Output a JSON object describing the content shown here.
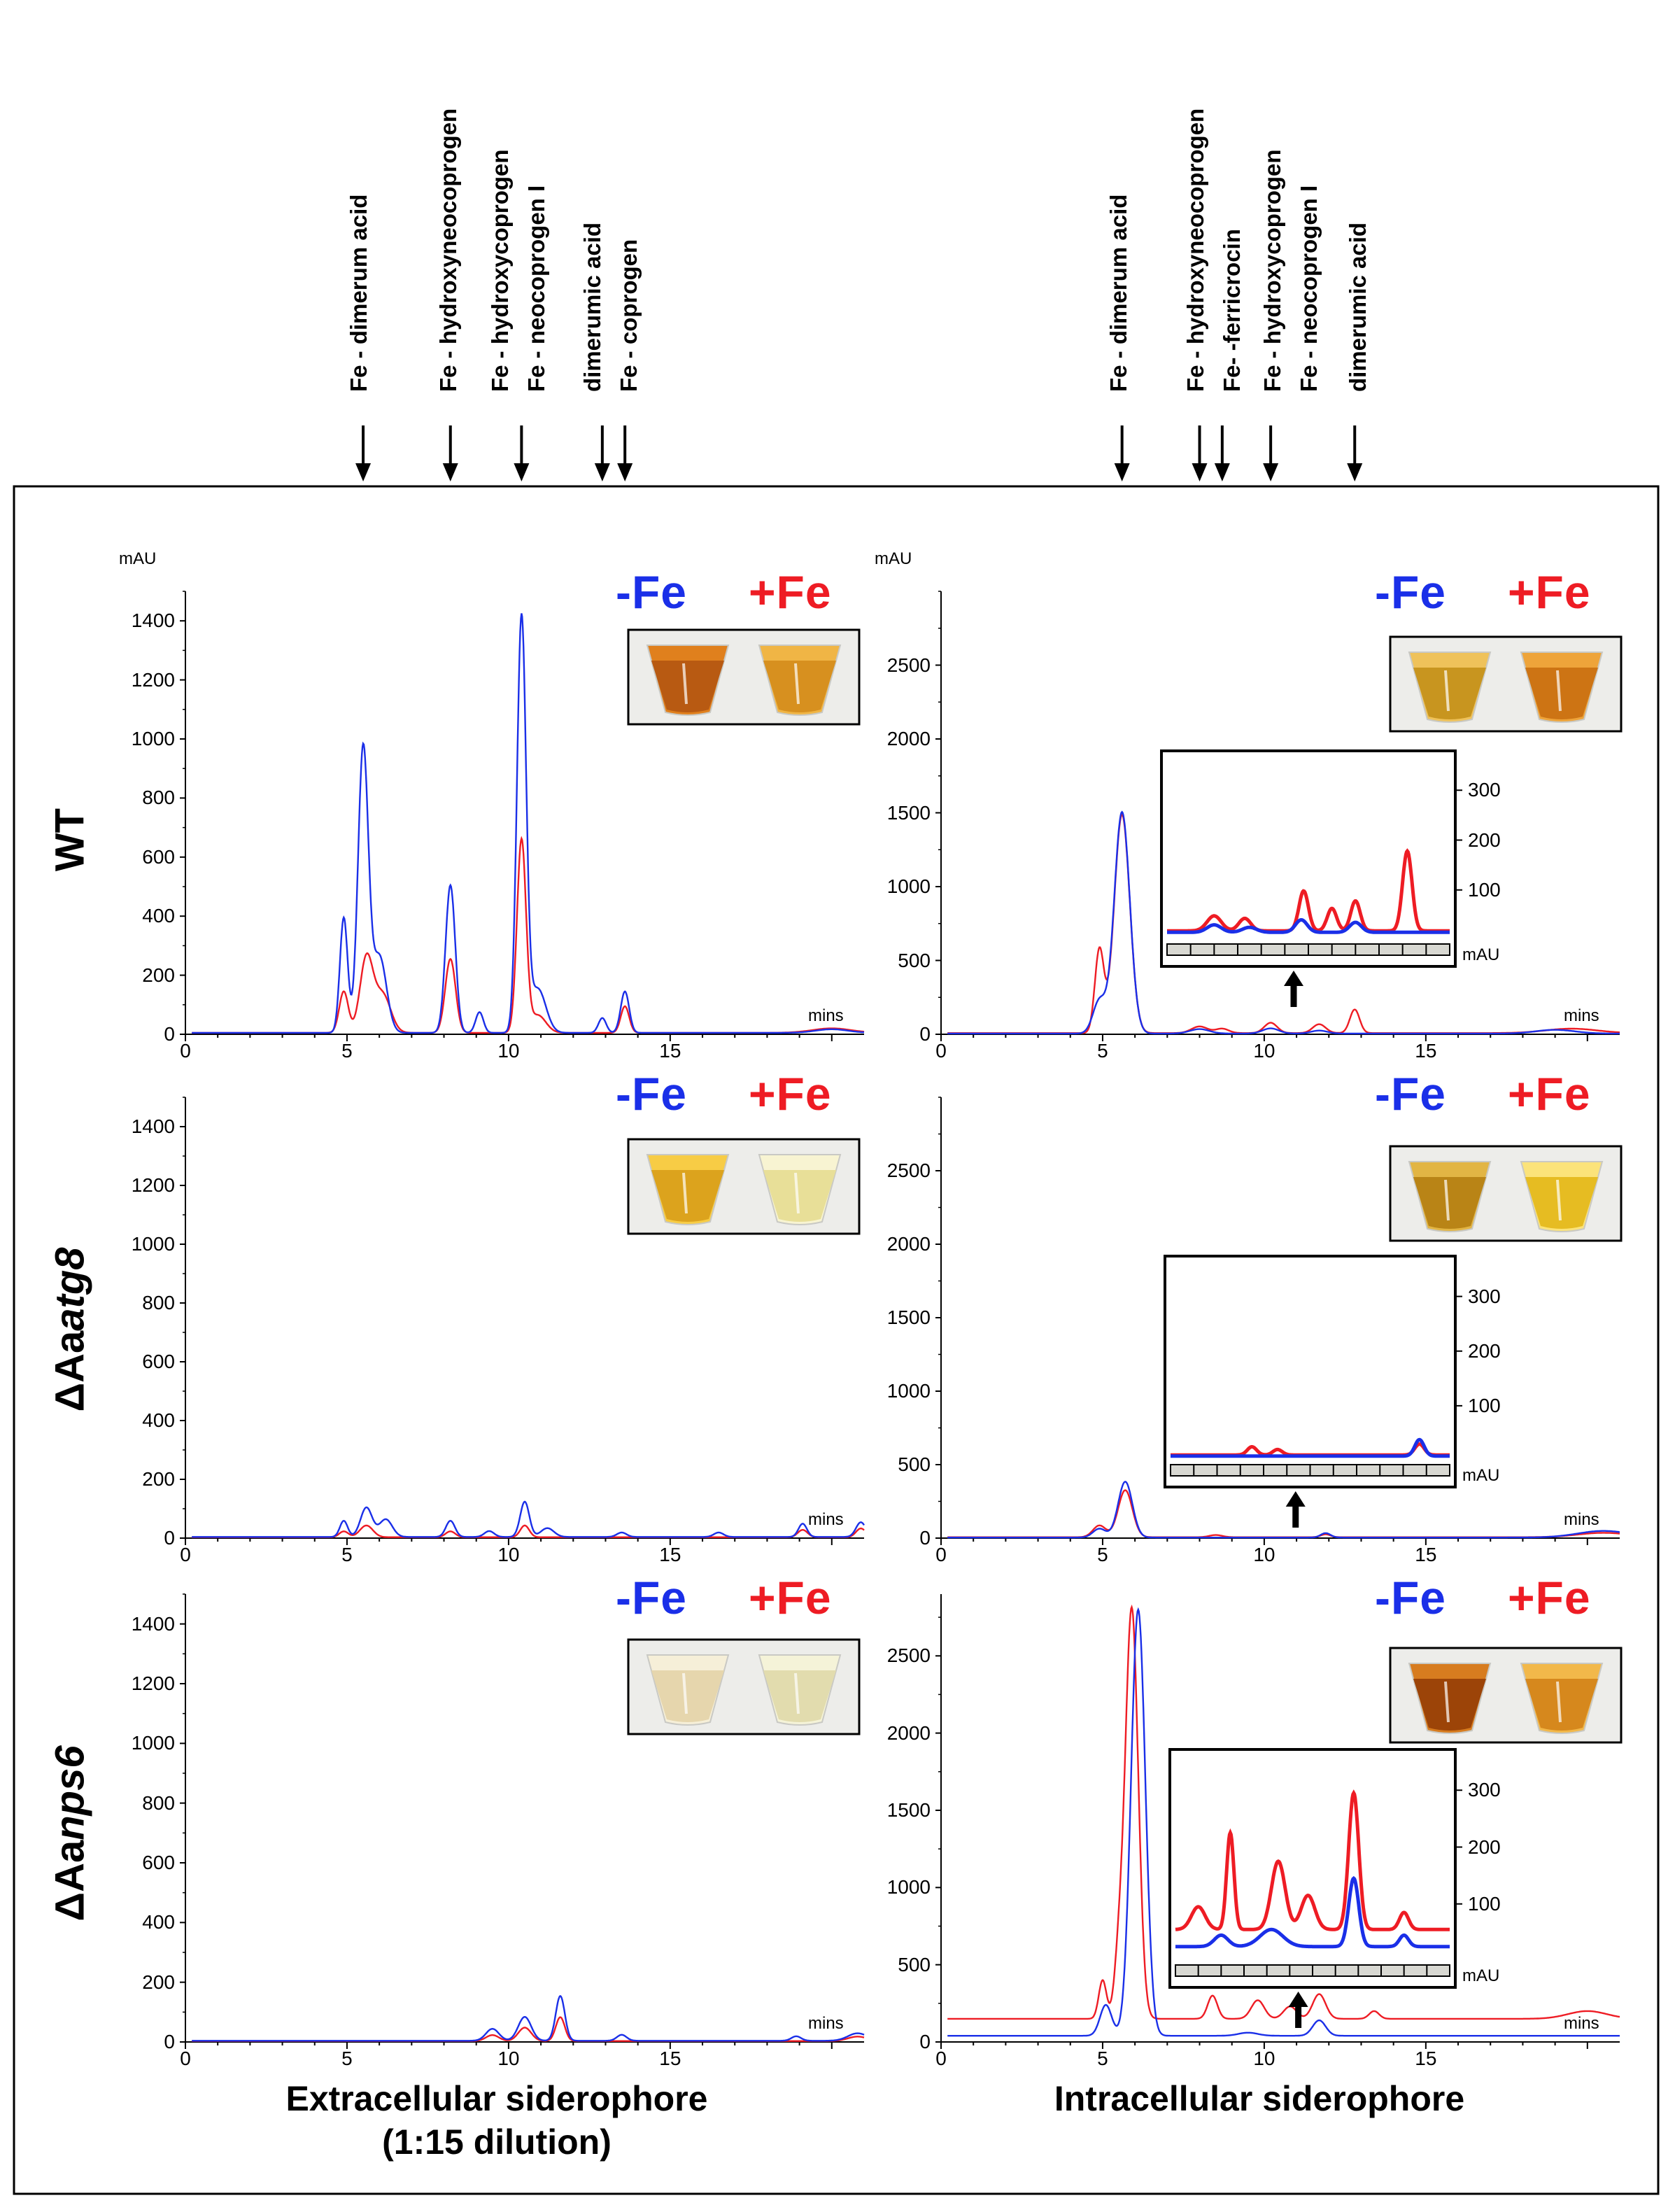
{
  "chart_data": {
    "type": "line",
    "peak_labels": {
      "extracellular": [
        "Fe - dimerum acid",
        "Fe - hydroxyneocoprogen",
        "Fe - hydroxycoprogen",
        "Fe - neocoprogen I",
        "dimerumic acid",
        "Fe - coprogen"
      ],
      "intracellular": [
        "Fe - dimerum acid",
        "Fe - hydroxyneocoprogen",
        "Fe- -ferricrocin",
        "Fe - hydroxycoprogen",
        "Fe - neocoprogen I",
        "dimerumic acid"
      ]
    },
    "arrow_positions_min": {
      "extracellular": [
        5.5,
        8.2,
        10.4,
        12.9,
        13.6
      ],
      "intracellular": [
        5.6,
        8.0,
        8.7,
        10.2,
        12.8
      ]
    },
    "rows": [
      "WT",
      "ΔAaatg8",
      "ΔAanps6"
    ],
    "row_labels": {
      "wt": "WT",
      "atg8_prefix": "ΔAa",
      "atg8_suffix": "atg8",
      "nps6_prefix": "ΔAa",
      "nps6_suffix": "nps6"
    },
    "legend": {
      "minus_fe": "-Fe",
      "plus_fe": "+Fe"
    },
    "colors": {
      "minus_fe": "#1a2fe8",
      "plus_fe": "#ee1c24"
    },
    "x_axis": {
      "label": "mins",
      "range": [
        0,
        21
      ],
      "ticks": [
        "0",
        "5",
        "10",
        "15"
      ]
    },
    "y_unit": "mAU",
    "column_titles": [
      "Extracellular siderophore",
      "(1:15 dilution)",
      "Intracellular siderophore"
    ],
    "panels": [
      {
        "id": "wt-extracellular",
        "ylim": [
          0,
          1500
        ],
        "yticks": [
          "0",
          "200",
          "400",
          "600",
          "800",
          "1000",
          "1200",
          "1400"
        ],
        "series": {
          "minus_fe": {
            "baseline": 5,
            "peaks": [
              [
                4.9,
                390,
                0.12
              ],
              [
                5.5,
                960,
                0.16
              ],
              [
                6.0,
                260,
                0.22
              ],
              [
                8.2,
                500,
                0.15
              ],
              [
                9.1,
                70,
                0.12
              ],
              [
                10.4,
                1400,
                0.14
              ],
              [
                10.9,
                150,
                0.25
              ],
              [
                12.9,
                50,
                0.12
              ],
              [
                13.6,
                140,
                0.13
              ],
              [
                20.0,
                12,
                0.5
              ]
            ]
          },
          "plus_fe": {
            "baseline": 5,
            "peaks": [
              [
                4.9,
                140,
                0.14
              ],
              [
                5.6,
                250,
                0.2
              ],
              [
                6.1,
                130,
                0.25
              ],
              [
                8.2,
                250,
                0.16
              ],
              [
                10.4,
                650,
                0.14
              ],
              [
                10.9,
                60,
                0.25
              ],
              [
                13.6,
                90,
                0.13
              ],
              [
                20.0,
                15,
                0.6
              ]
            ]
          }
        }
      },
      {
        "id": "wt-intracellular",
        "ylim": [
          0,
          3000
        ],
        "yticks": [
          "0",
          "500",
          "1000",
          "1500",
          "2000",
          "2500"
        ],
        "inset_yticks": [
          "100",
          "200",
          "300"
        ],
        "series": {
          "minus_fe": {
            "baseline": 5,
            "peaks": [
              [
                4.9,
                220,
                0.2
              ],
              [
                5.6,
                1500,
                0.24
              ],
              [
                8.0,
                30,
                0.3
              ],
              [
                10.2,
                35,
                0.25
              ],
              [
                11.7,
                20,
                0.25
              ],
              [
                19.0,
                25,
                0.6
              ]
            ]
          },
          "plus_fe": {
            "baseline": 8,
            "peaks": [
              [
                4.9,
                560,
                0.14
              ],
              [
                5.6,
                1480,
                0.24
              ],
              [
                8.0,
                45,
                0.25
              ],
              [
                8.7,
                30,
                0.2
              ],
              [
                10.2,
                70,
                0.2
              ],
              [
                11.7,
                60,
                0.2
              ],
              [
                12.8,
                160,
                0.15
              ],
              [
                19.5,
                30,
                0.8
              ]
            ]
          }
        },
        "inset_series": {
          "minus_fe": {
            "baseline": 15,
            "peaks": [
              [
                2.0,
                15,
                0.3
              ],
              [
                3.5,
                10,
                0.3
              ],
              [
                5.7,
                25,
                0.25
              ],
              [
                8.0,
                20,
                0.25
              ]
            ]
          },
          "plus_fe": {
            "baseline": 18,
            "peaks": [
              [
                2.0,
                30,
                0.3
              ],
              [
                3.3,
                25,
                0.25
              ],
              [
                5.8,
                80,
                0.2
              ],
              [
                7.0,
                45,
                0.2
              ],
              [
                8.0,
                60,
                0.2
              ],
              [
                10.2,
                160,
                0.2
              ]
            ]
          }
        }
      },
      {
        "id": "atg8-extracellular",
        "ylim": [
          0,
          1500
        ],
        "yticks": [
          "0",
          "200",
          "400",
          "600",
          "800",
          "1000",
          "1200",
          "1400"
        ],
        "series": {
          "minus_fe": {
            "baseline": 4,
            "peaks": [
              [
                4.9,
                55,
                0.12
              ],
              [
                5.6,
                100,
                0.18
              ],
              [
                6.2,
                60,
                0.2
              ],
              [
                8.2,
                55,
                0.14
              ],
              [
                9.4,
                20,
                0.15
              ],
              [
                10.5,
                120,
                0.14
              ],
              [
                11.2,
                30,
                0.2
              ],
              [
                13.5,
                15,
                0.15
              ],
              [
                16.5,
                15,
                0.15
              ],
              [
                19.1,
                45,
                0.13
              ],
              [
                20.9,
                50,
                0.15
              ]
            ]
          },
          "plus_fe": {
            "baseline": 3,
            "peaks": [
              [
                4.9,
                20,
                0.14
              ],
              [
                5.6,
                40,
                0.2
              ],
              [
                8.2,
                20,
                0.15
              ],
              [
                10.5,
                40,
                0.14
              ],
              [
                19.1,
                25,
                0.15
              ],
              [
                20.9,
                30,
                0.15
              ]
            ]
          }
        }
      },
      {
        "id": "atg8-intracellular",
        "ylim": [
          0,
          3000
        ],
        "yticks": [
          "0",
          "500",
          "1000",
          "1500",
          "2000",
          "2500"
        ],
        "inset_yticks": [
          "100",
          "200",
          "300"
        ],
        "series": {
          "minus_fe": {
            "baseline": 4,
            "peaks": [
              [
                4.9,
                60,
                0.2
              ],
              [
                5.7,
                380,
                0.22
              ],
              [
                11.9,
                30,
                0.15
              ],
              [
                20.5,
                45,
                0.8
              ]
            ]
          },
          "plus_fe": {
            "baseline": 6,
            "peaks": [
              [
                4.9,
                80,
                0.2
              ],
              [
                5.7,
                320,
                0.22
              ],
              [
                8.5,
                15,
                0.2
              ],
              [
                11.9,
                20,
                0.15
              ],
              [
                20.5,
                30,
                0.8
              ]
            ]
          }
        },
        "inset_series": {
          "minus_fe": {
            "baseline": 8,
            "peaks": [
              [
                10.7,
                30,
                0.2
              ]
            ]
          },
          "plus_fe": {
            "baseline": 10,
            "peaks": [
              [
                3.5,
                15,
                0.2
              ],
              [
                4.6,
                10,
                0.2
              ],
              [
                10.7,
                20,
                0.2
              ]
            ]
          }
        }
      },
      {
        "id": "nps6-extracellular",
        "ylim": [
          0,
          1500
        ],
        "yticks": [
          "0",
          "200",
          "400",
          "600",
          "800",
          "1000",
          "1200",
          "1400"
        ],
        "series": {
          "minus_fe": {
            "baseline": 4,
            "peaks": [
              [
                9.5,
                40,
                0.2
              ],
              [
                10.5,
                80,
                0.2
              ],
              [
                11.6,
                150,
                0.14
              ],
              [
                13.5,
                20,
                0.15
              ],
              [
                18.9,
                15,
                0.15
              ],
              [
                20.8,
                25,
                0.3
              ]
            ]
          },
          "plus_fe": {
            "baseline": 3,
            "peaks": [
              [
                9.5,
                20,
                0.2
              ],
              [
                10.5,
                45,
                0.2
              ],
              [
                11.6,
                80,
                0.14
              ],
              [
                20.8,
                15,
                0.3
              ]
            ]
          }
        }
      },
      {
        "id": "nps6-intracellular",
        "ylim": [
          0,
          2900
        ],
        "yticks": [
          "0",
          "500",
          "1000",
          "1500",
          "2000",
          "2500"
        ],
        "inset_yticks": [
          "100",
          "200",
          "300"
        ],
        "series": {
          "minus_fe": {
            "baseline": 40,
            "peaks": [
              [
                5.1,
                200,
                0.18
              ],
              [
                6.1,
                2760,
                0.22
              ],
              [
                9.5,
                20,
                0.3
              ],
              [
                11.7,
                100,
                0.2
              ]
            ]
          },
          "plus_fe": {
            "baseline": 150,
            "peaks": [
              [
                5.0,
                250,
                0.12
              ],
              [
                5.5,
                350,
                0.14
              ],
              [
                5.9,
                2660,
                0.2
              ],
              [
                8.4,
                150,
                0.15
              ],
              [
                9.8,
                120,
                0.2
              ],
              [
                10.8,
                80,
                0.2
              ],
              [
                11.7,
                160,
                0.2
              ],
              [
                13.4,
                50,
                0.15
              ],
              [
                20.0,
                50,
                0.6
              ]
            ]
          }
        },
        "inset_series": {
          "minus_fe": {
            "baseline": 25,
            "peaks": [
              [
                2.0,
                20,
                0.3
              ],
              [
                4.2,
                30,
                0.5
              ],
              [
                7.8,
                120,
                0.22
              ],
              [
                10.0,
                20,
                0.2
              ]
            ]
          },
          "plus_fe": {
            "baseline": 55,
            "peaks": [
              [
                1.0,
                40,
                0.3
              ],
              [
                2.4,
                170,
                0.16
              ],
              [
                4.5,
                120,
                0.3
              ],
              [
                5.8,
                60,
                0.3
              ],
              [
                7.8,
                240,
                0.22
              ],
              [
                10.0,
                30,
                0.2
              ]
            ]
          }
        }
      }
    ]
  }
}
